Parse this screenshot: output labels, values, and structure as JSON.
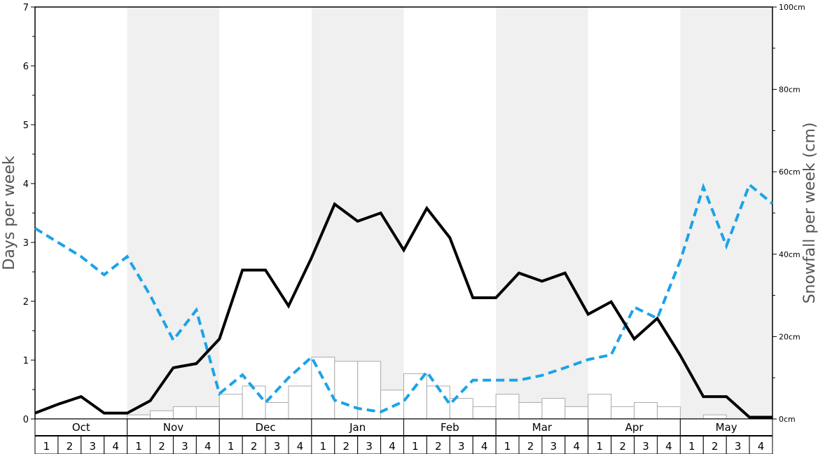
{
  "chart_data": {
    "type": "bar",
    "y_left": {
      "label": "Days per week",
      "lim": [
        0,
        7
      ],
      "ticks": [
        "0",
        "1",
        "2",
        "3",
        "4",
        "5",
        "6",
        "7"
      ]
    },
    "y_right": {
      "label": "Snowfall per week (cm)",
      "lim": [
        0,
        100
      ],
      "ticks": [
        "0cm",
        "20cm",
        "40cm",
        "60cm",
        "80cm",
        "100cm"
      ]
    },
    "months": [
      "Oct",
      "Nov",
      "Dec",
      "Jan",
      "Feb",
      "Mar",
      "Apr",
      "May"
    ],
    "weeks": [
      "1",
      "2",
      "3",
      "4"
    ],
    "shaded_months": [
      false,
      true,
      false,
      true,
      false,
      true,
      false,
      true
    ],
    "colors": {
      "shade": "#f0f0f0",
      "bar_fill": "#ffffff",
      "bar_stroke": "#aaaaaa",
      "solid_line": "#000000",
      "dashed_line": "#1aa3e8"
    },
    "snowfall_bars_days": [
      0,
      0,
      0,
      0,
      0.07,
      0.14,
      0.21,
      0.21,
      0.42,
      0.56,
      0.28,
      0.56,
      1.05,
      0.98,
      0.98,
      0.49,
      0.77,
      0.56,
      0.35,
      0.21,
      0.42,
      0.28,
      0.35,
      0.21,
      0.42,
      0.21,
      0.28,
      0.21,
      0,
      0.07,
      0,
      0
    ],
    "solid_line_days": [
      0.1,
      0.25,
      0.38,
      0.1,
      0.1,
      0.31,
      0.87,
      0.94,
      1.36,
      2.53,
      2.53,
      1.92,
      2.74,
      3.65,
      3.36,
      3.5,
      2.87,
      3.58,
      3.08,
      2.06,
      2.06,
      2.48,
      2.34,
      2.48,
      1.78,
      1.99,
      1.36,
      1.71,
      1.08,
      0.38,
      0.38,
      0.03,
      0.03
    ],
    "dashed_line_days": [
      3.24,
      3.0,
      2.76,
      2.45,
      2.76,
      2.1,
      1.34,
      1.85,
      0.43,
      0.75,
      0.28,
      0.7,
      1.05,
      0.32,
      0.18,
      0.12,
      0.3,
      0.8,
      0.25,
      0.66,
      0.66,
      0.66,
      0.74,
      0.87,
      1.01,
      1.09,
      1.9,
      1.71,
      2.69,
      3.94,
      2.94,
      3.98,
      3.66
    ]
  }
}
